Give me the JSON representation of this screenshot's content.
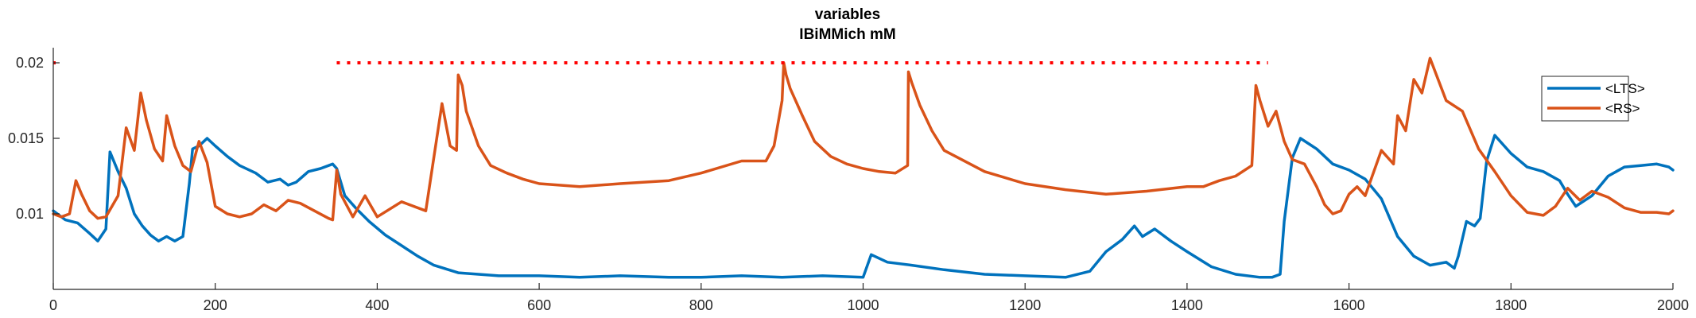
{
  "chart_data": {
    "type": "line",
    "title": "variables",
    "subtitle": "IBiMMich mM",
    "xlabel": "",
    "ylabel": "",
    "xlim": [
      0,
      2000
    ],
    "ylim": [
      0.005,
      0.021
    ],
    "xticks": [
      0,
      200,
      400,
      600,
      800,
      1000,
      1200,
      1400,
      1600,
      1800,
      2000
    ],
    "xtick_labels": [
      "0",
      "200",
      "400",
      "600",
      "800",
      "1000",
      "1200",
      "1400",
      "1600",
      "1800",
      "2000"
    ],
    "yticks": [
      0.01,
      0.015,
      0.02
    ],
    "ytick_labels": [
      "0.01",
      "0.015",
      "0.02"
    ],
    "grid": false,
    "legend_position": "top-right",
    "stimulus_marker": {
      "y": 0.02,
      "x_start": 350,
      "x_end": 1500,
      "color": "#ff0000",
      "style": "dotted"
    },
    "series": [
      {
        "name": "<LTS>",
        "color": "#0072bd",
        "x": [
          0,
          15,
          30,
          45,
          55,
          65,
          70,
          80,
          90,
          100,
          110,
          120,
          130,
          140,
          150,
          160,
          168,
          172,
          180,
          190,
          200,
          215,
          230,
          250,
          265,
          280,
          290,
          300,
          315,
          330,
          345,
          350,
          360,
          375,
          390,
          410,
          430,
          450,
          470,
          500,
          550,
          600,
          650,
          700,
          760,
          800,
          850,
          900,
          950,
          1000,
          1010,
          1030,
          1060,
          1100,
          1150,
          1200,
          1250,
          1280,
          1300,
          1320,
          1335,
          1345,
          1360,
          1380,
          1400,
          1430,
          1460,
          1490,
          1505,
          1515,
          1520,
          1530,
          1540,
          1560,
          1580,
          1600,
          1620,
          1640,
          1660,
          1680,
          1700,
          1720,
          1730,
          1735,
          1745,
          1755,
          1762,
          1770,
          1780,
          1800,
          1820,
          1840,
          1860,
          1870,
          1880,
          1900,
          1920,
          1940,
          1960,
          1980,
          1995,
          2000
        ],
        "values": [
          0.0102,
          0.0096,
          0.0094,
          0.0087,
          0.0082,
          0.009,
          0.0141,
          0.0128,
          0.0117,
          0.01,
          0.0092,
          0.0086,
          0.0082,
          0.0085,
          0.0082,
          0.0085,
          0.012,
          0.0143,
          0.0145,
          0.015,
          0.0145,
          0.0138,
          0.0132,
          0.0127,
          0.0121,
          0.0123,
          0.0119,
          0.0121,
          0.0128,
          0.013,
          0.0133,
          0.013,
          0.0112,
          0.0103,
          0.0095,
          0.0086,
          0.0079,
          0.0072,
          0.0066,
          0.0061,
          0.0059,
          0.0059,
          0.0058,
          0.0059,
          0.0058,
          0.0058,
          0.0059,
          0.0058,
          0.0059,
          0.0058,
          0.0073,
          0.0068,
          0.0066,
          0.0063,
          0.006,
          0.0059,
          0.0058,
          0.0062,
          0.0075,
          0.0083,
          0.0092,
          0.0085,
          0.009,
          0.0082,
          0.0075,
          0.0065,
          0.006,
          0.0058,
          0.0058,
          0.006,
          0.0095,
          0.0137,
          0.015,
          0.0143,
          0.0133,
          0.0129,
          0.0123,
          0.011,
          0.0085,
          0.0072,
          0.0066,
          0.0068,
          0.0064,
          0.0072,
          0.0095,
          0.0092,
          0.0097,
          0.0135,
          0.0152,
          0.014,
          0.0131,
          0.0128,
          0.0122,
          0.0113,
          0.0105,
          0.0112,
          0.0125,
          0.0131,
          0.0132,
          0.0133,
          0.0131,
          0.0129
        ]
      },
      {
        "name": "<RS>",
        "color": "#d95319",
        "x": [
          0,
          10,
          20,
          28,
          35,
          45,
          55,
          65,
          80,
          90,
          100,
          108,
          115,
          125,
          135,
          140,
          150,
          160,
          170,
          180,
          190,
          200,
          215,
          230,
          245,
          260,
          275,
          290,
          305,
          340,
          345,
          350,
          355,
          370,
          385,
          400,
          430,
          460,
          480,
          490,
          498,
          500,
          505,
          510,
          525,
          540,
          560,
          580,
          600,
          650,
          700,
          760,
          800,
          850,
          880,
          890,
          900,
          902,
          905,
          910,
          925,
          940,
          960,
          980,
          1000,
          1020,
          1040,
          1055,
          1056,
          1060,
          1070,
          1085,
          1100,
          1150,
          1200,
          1250,
          1300,
          1350,
          1400,
          1420,
          1440,
          1460,
          1480,
          1485,
          1490,
          1500,
          1510,
          1520,
          1530,
          1545,
          1560,
          1570,
          1580,
          1590,
          1600,
          1610,
          1620,
          1640,
          1655,
          1660,
          1670,
          1680,
          1690,
          1700,
          1720,
          1740,
          1760,
          1780,
          1800,
          1820,
          1840,
          1855,
          1870,
          1885,
          1900,
          1920,
          1940,
          1960,
          1980,
          1995,
          2000
        ],
        "values": [
          0.01,
          0.0098,
          0.01,
          0.0122,
          0.0113,
          0.0102,
          0.0097,
          0.0098,
          0.0112,
          0.0157,
          0.0142,
          0.018,
          0.0162,
          0.0143,
          0.0135,
          0.0165,
          0.0145,
          0.0132,
          0.0128,
          0.0148,
          0.0134,
          0.0105,
          0.01,
          0.0098,
          0.01,
          0.0106,
          0.0102,
          0.0109,
          0.0107,
          0.0097,
          0.0096,
          0.0129,
          0.0113,
          0.0098,
          0.0112,
          0.0098,
          0.0108,
          0.0102,
          0.0173,
          0.0145,
          0.0142,
          0.0192,
          0.0185,
          0.0168,
          0.0145,
          0.0132,
          0.0127,
          0.0123,
          0.012,
          0.0118,
          0.012,
          0.0122,
          0.0127,
          0.0135,
          0.0135,
          0.0145,
          0.0175,
          0.02,
          0.0192,
          0.0183,
          0.0165,
          0.0148,
          0.0138,
          0.0133,
          0.013,
          0.0128,
          0.0127,
          0.0132,
          0.0194,
          0.0187,
          0.0172,
          0.0155,
          0.0142,
          0.0128,
          0.012,
          0.0116,
          0.0113,
          0.0115,
          0.0118,
          0.0118,
          0.0122,
          0.0125,
          0.0132,
          0.0185,
          0.0175,
          0.0158,
          0.0168,
          0.0148,
          0.0136,
          0.0133,
          0.0118,
          0.0106,
          0.01,
          0.0102,
          0.0113,
          0.0118,
          0.0112,
          0.0142,
          0.0133,
          0.0165,
          0.0155,
          0.0189,
          0.018,
          0.0203,
          0.0175,
          0.0168,
          0.0143,
          0.0128,
          0.0112,
          0.0101,
          0.0099,
          0.0105,
          0.0117,
          0.0109,
          0.0115,
          0.0111,
          0.0104,
          0.0101,
          0.0101,
          0.01,
          0.0102
        ]
      }
    ]
  }
}
